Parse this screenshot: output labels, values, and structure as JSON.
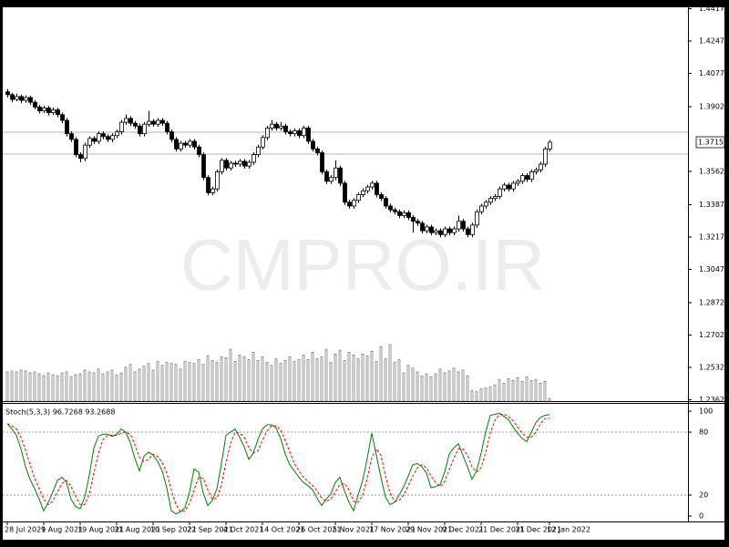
{
  "chart_data": [
    {
      "type": "candlestick",
      "watermark": "CMPRO.IR",
      "categories": [
        "28 Jul 2021",
        null,
        null,
        null,
        null,
        null,
        null,
        null,
        "9 Aug 2021",
        null,
        null,
        null,
        null,
        null,
        null,
        null,
        "19 Aug 2021",
        null,
        null,
        null,
        null,
        null,
        null,
        null,
        "31 Aug 2021",
        null,
        null,
        null,
        null,
        null,
        null,
        null,
        "10 Sep 2021",
        null,
        null,
        null,
        null,
        null,
        null,
        null,
        "22 Sep 2021",
        null,
        null,
        null,
        null,
        null,
        null,
        null,
        "4 Oct 2021",
        null,
        null,
        null,
        null,
        null,
        null,
        null,
        "14 Oct 2021",
        null,
        null,
        null,
        null,
        null,
        null,
        null,
        "26 Oct 2021",
        null,
        null,
        null,
        null,
        null,
        null,
        null,
        "5 Nov 2021",
        null,
        null,
        null,
        null,
        null,
        null,
        null,
        "17 Nov 2021",
        null,
        null,
        null,
        null,
        null,
        null,
        null,
        "29 Nov 2021",
        null,
        null,
        null,
        null,
        null,
        null,
        null,
        "9 Dec 2021",
        null,
        null,
        null,
        null,
        null,
        null,
        null,
        "21 Dec 2021",
        null,
        null,
        null,
        null,
        null,
        null,
        null,
        "31 Dec 2021",
        null,
        null,
        null,
        null,
        null,
        null,
        "12 Jan 2022"
      ],
      "open": [
        1.398,
        1.3965,
        1.394,
        1.3955,
        1.3935,
        1.395,
        1.3925,
        1.39,
        1.388,
        1.3895,
        1.387,
        1.3885,
        1.386,
        1.383,
        1.376,
        1.373,
        1.365,
        1.363,
        1.37,
        1.3735,
        1.372,
        1.376,
        1.3745,
        1.373,
        1.375,
        1.377,
        1.382,
        1.384,
        1.3815,
        1.38,
        1.376,
        1.381,
        1.3825,
        1.381,
        1.383,
        1.3815,
        1.377,
        1.373,
        1.368,
        1.371,
        1.37,
        1.372,
        1.369,
        1.365,
        1.353,
        1.345,
        1.347,
        1.356,
        1.362,
        1.358,
        1.3605,
        1.36,
        1.3615,
        1.359,
        1.361,
        1.365,
        1.369,
        1.374,
        1.379,
        1.381,
        1.379,
        1.38,
        1.377,
        1.376,
        1.3775,
        1.375,
        1.379,
        1.372,
        1.368,
        1.366,
        1.356,
        1.351,
        1.353,
        1.358,
        1.35,
        1.34,
        1.338,
        1.341,
        1.344,
        1.346,
        1.348,
        1.35,
        1.344,
        1.342,
        1.338,
        1.336,
        1.335,
        1.333,
        1.3345,
        1.332,
        1.33,
        1.329,
        1.325,
        1.327,
        1.324,
        1.325,
        1.323,
        1.326,
        1.324,
        1.326,
        1.33,
        1.326,
        1.323,
        1.328,
        1.335,
        1.338,
        1.34,
        1.342,
        1.343,
        1.347,
        1.349,
        1.347,
        1.35,
        1.351,
        1.354,
        1.352,
        1.356,
        1.357,
        1.36,
        1.368
      ],
      "high": [
        1.3995,
        1.3975,
        1.397,
        1.3965,
        1.3962,
        1.396,
        1.3937,
        1.3912,
        1.3908,
        1.3906,
        1.3898,
        1.3897,
        1.3872,
        1.3842,
        1.3772,
        1.3742,
        1.3662,
        1.3712,
        1.3747,
        1.3747,
        1.3772,
        1.3772,
        1.3757,
        1.3762,
        1.3782,
        1.3832,
        1.3862,
        1.3852,
        1.3827,
        1.3812,
        1.3822,
        1.388,
        1.3837,
        1.3842,
        1.3842,
        1.3827,
        1.3782,
        1.3742,
        1.3722,
        1.3722,
        1.3732,
        1.3732,
        1.3702,
        1.3662,
        1.3542,
        1.3482,
        1.3572,
        1.3632,
        1.3632,
        1.3617,
        1.3617,
        1.3627,
        1.3627,
        1.3622,
        1.3662,
        1.3702,
        1.3752,
        1.3802,
        1.3832,
        1.3822,
        1.3822,
        1.3812,
        1.3782,
        1.3787,
        1.3787,
        1.3802,
        1.3802,
        1.3732,
        1.3692,
        1.3672,
        1.3572,
        1.3542,
        1.362,
        1.3592,
        1.3512,
        1.3412,
        1.3422,
        1.3452,
        1.3472,
        1.3492,
        1.3512,
        1.3512,
        1.3452,
        1.3432,
        1.3392,
        1.3372,
        1.3362,
        1.3357,
        1.3357,
        1.3332,
        1.3312,
        1.3302,
        1.3282,
        1.3282,
        1.3262,
        1.3262,
        1.3272,
        1.3272,
        1.3272,
        1.333,
        1.3312,
        1.3272,
        1.3292,
        1.3362,
        1.3392,
        1.3412,
        1.3432,
        1.3442,
        1.3482,
        1.3502,
        1.3502,
        1.3512,
        1.3522,
        1.3552,
        1.3552,
        1.3572,
        1.3582,
        1.3612,
        1.3692,
        1.3727
      ],
      "low": [
        1.395,
        1.3925,
        1.393,
        1.392,
        1.3922,
        1.3912,
        1.3888,
        1.3866,
        1.3868,
        1.3856,
        1.3858,
        1.3846,
        1.3816,
        1.3746,
        1.3716,
        1.3636,
        1.361,
        1.3616,
        1.3686,
        1.3706,
        1.3706,
        1.3731,
        1.3716,
        1.3716,
        1.3736,
        1.3756,
        1.3806,
        1.3801,
        1.3786,
        1.3746,
        1.3746,
        1.3796,
        1.3796,
        1.3796,
        1.3801,
        1.3756,
        1.3716,
        1.3666,
        1.3666,
        1.3686,
        1.3686,
        1.3676,
        1.3636,
        1.3516,
        1.3436,
        1.3436,
        1.3456,
        1.3546,
        1.3566,
        1.3566,
        1.3586,
        1.3586,
        1.3576,
        1.3576,
        1.3596,
        1.3636,
        1.3676,
        1.3726,
        1.3776,
        1.3776,
        1.3776,
        1.3756,
        1.3746,
        1.3746,
        1.3736,
        1.3736,
        1.3706,
        1.3666,
        1.3646,
        1.3546,
        1.3496,
        1.3496,
        1.3516,
        1.3486,
        1.3386,
        1.3366,
        1.3366,
        1.3396,
        1.3426,
        1.3446,
        1.3466,
        1.3426,
        1.3406,
        1.3366,
        1.3346,
        1.3336,
        1.3316,
        1.3316,
        1.3306,
        1.324,
        1.3276,
        1.3236,
        1.3236,
        1.3226,
        1.3226,
        1.3216,
        1.3216,
        1.3226,
        1.3226,
        1.3246,
        1.3246,
        1.3216,
        1.3216,
        1.3266,
        1.3336,
        1.3366,
        1.3386,
        1.3406,
        1.3416,
        1.3456,
        1.3456,
        1.3456,
        1.3486,
        1.3496,
        1.3506,
        1.3506,
        1.3546,
        1.3556,
        1.3586,
        1.3666
      ],
      "close": [
        1.3965,
        1.394,
        1.3955,
        1.3935,
        1.395,
        1.3925,
        1.39,
        1.388,
        1.3895,
        1.387,
        1.3885,
        1.386,
        1.383,
        1.376,
        1.373,
        1.365,
        1.363,
        1.37,
        1.3735,
        1.372,
        1.376,
        1.3745,
        1.373,
        1.375,
        1.377,
        1.382,
        1.384,
        1.3815,
        1.38,
        1.376,
        1.381,
        1.3825,
        1.381,
        1.383,
        1.3815,
        1.377,
        1.373,
        1.368,
        1.371,
        1.37,
        1.372,
        1.369,
        1.365,
        1.353,
        1.345,
        1.347,
        1.356,
        1.362,
        1.358,
        1.3605,
        1.36,
        1.3615,
        1.359,
        1.361,
        1.365,
        1.369,
        1.374,
        1.379,
        1.381,
        1.379,
        1.38,
        1.377,
        1.376,
        1.3775,
        1.375,
        1.379,
        1.372,
        1.368,
        1.366,
        1.356,
        1.351,
        1.353,
        1.358,
        1.35,
        1.34,
        1.338,
        1.341,
        1.344,
        1.346,
        1.348,
        1.35,
        1.344,
        1.342,
        1.338,
        1.336,
        1.335,
        1.333,
        1.3345,
        1.332,
        1.33,
        1.329,
        1.325,
        1.327,
        1.324,
        1.325,
        1.323,
        1.326,
        1.324,
        1.326,
        1.33,
        1.326,
        1.323,
        1.328,
        1.335,
        1.338,
        1.34,
        1.342,
        1.343,
        1.347,
        1.349,
        1.347,
        1.35,
        1.351,
        1.354,
        1.352,
        1.356,
        1.357,
        1.36,
        1.368,
        1.37152
      ],
      "volume": [
        31,
        32,
        31,
        33,
        32,
        30,
        31,
        29,
        27,
        30,
        28,
        27,
        30,
        31,
        26,
        28,
        29,
        33,
        31,
        30,
        34,
        29,
        31,
        33,
        28,
        30,
        36,
        39,
        31,
        34,
        37,
        40,
        33,
        42,
        38,
        41,
        40,
        39,
        34,
        42,
        41,
        40,
        44,
        39,
        48,
        43,
        41,
        47,
        46,
        55,
        42,
        49,
        47,
        44,
        52,
        43,
        47,
        41,
        38,
        45,
        40,
        43,
        47,
        42,
        44,
        49,
        44,
        52,
        45,
        47,
        55,
        41,
        50,
        54,
        43,
        52,
        49,
        45,
        50,
        48,
        53,
        42,
        58,
        45,
        60,
        41,
        44,
        30,
        38,
        35,
        31,
        27,
        29,
        26,
        29,
        34,
        30,
        32,
        35,
        31,
        33,
        27,
        11,
        10,
        13,
        14,
        15,
        17,
        23,
        19,
        24,
        22,
        25,
        21,
        26,
        22,
        23,
        19,
        21,
        3
      ],
      "ylim": [
        1.2355,
        1.4424
      ],
      "yticks": [
        {
          "value": 1.4417,
          "label": "1.44170"
        },
        {
          "value": 1.4247,
          "label": "1.42470"
        },
        {
          "value": 1.4077,
          "label": "1.40770"
        },
        {
          "value": 1.3902,
          "label": "1.39020"
        },
        {
          "value": 1.3562,
          "label": "1.35620"
        },
        {
          "value": 1.3387,
          "label": "1.33870"
        },
        {
          "value": 1.3217,
          "label": "1.32170"
        },
        {
          "value": 1.3047,
          "label": "1.30470"
        },
        {
          "value": 1.2872,
          "label": "1.28720"
        },
        {
          "value": 1.2702,
          "label": "1.27020"
        },
        {
          "value": 1.2532,
          "label": "1.25320"
        },
        {
          "value": 1.2362,
          "label": "1.23620"
        }
      ],
      "current_price": 1.37152,
      "levels": [
        1.3768,
        1.3653
      ],
      "up_color": "#ffffff",
      "down_color": "#000000"
    },
    {
      "type": "line",
      "title": "Stoch(5,3,3) 96.7268 93.2688",
      "ylim": [
        -5.2,
        107
      ],
      "yticks": [
        0,
        20,
        80,
        100
      ],
      "levels": [
        20,
        80
      ],
      "series": [
        {
          "color": "#008000",
          "dash": false,
          "values": [
            88,
            83,
            77,
            64,
            47,
            35,
            26,
            16,
            5,
            13,
            23,
            34,
            37,
            32,
            16,
            9,
            7,
            18,
            39,
            65,
            76,
            78,
            78,
            76,
            78,
            83,
            80,
            70,
            55,
            43,
            57,
            61,
            58,
            52,
            43,
            27,
            5,
            2,
            4,
            8,
            23,
            45,
            42,
            22,
            10,
            15,
            26,
            50,
            77,
            80,
            83,
            75,
            66,
            54,
            60,
            73,
            83,
            87,
            87,
            84,
            74,
            59,
            49,
            43,
            37,
            32,
            29,
            25,
            17,
            10,
            16,
            21,
            32,
            37,
            24,
            13,
            5,
            20,
            34,
            55,
            79,
            58,
            37,
            18,
            11,
            13,
            20,
            28,
            38,
            49,
            50,
            47,
            41,
            27,
            28,
            30,
            42,
            59,
            65,
            69,
            58,
            47,
            35,
            43,
            60,
            80,
            96,
            97,
            98,
            95,
            92,
            85,
            79,
            74,
            71,
            80,
            89,
            94,
            96,
            96.7268
          ]
        },
        {
          "color": "#ff0000",
          "dash": true,
          "values": [
            88,
            86,
            83,
            75,
            63,
            49,
            36,
            26,
            16,
            11,
            14,
            23,
            31,
            34,
            28,
            19,
            11,
            11,
            21,
            41,
            60,
            73,
            77,
            77,
            77,
            79,
            80,
            78,
            68,
            56,
            52,
            54,
            59,
            57,
            51,
            41,
            25,
            11,
            4,
            5,
            12,
            25,
            37,
            36,
            25,
            16,
            17,
            30,
            51,
            69,
            80,
            79,
            75,
            65,
            60,
            62,
            72,
            81,
            86,
            86,
            82,
            72,
            61,
            50,
            43,
            37,
            33,
            29,
            24,
            17,
            14,
            16,
            23,
            30,
            31,
            25,
            14,
            13,
            20,
            36,
            56,
            64,
            58,
            38,
            22,
            14,
            15,
            20,
            29,
            38,
            46,
            49,
            46,
            38,
            32,
            28,
            33,
            44,
            55,
            64,
            64,
            58,
            47,
            42,
            46,
            61,
            79,
            91,
            97,
            97,
            95,
            91,
            85,
            79,
            75,
            75,
            80,
            88,
            93,
            93.2688
          ]
        }
      ]
    }
  ]
}
